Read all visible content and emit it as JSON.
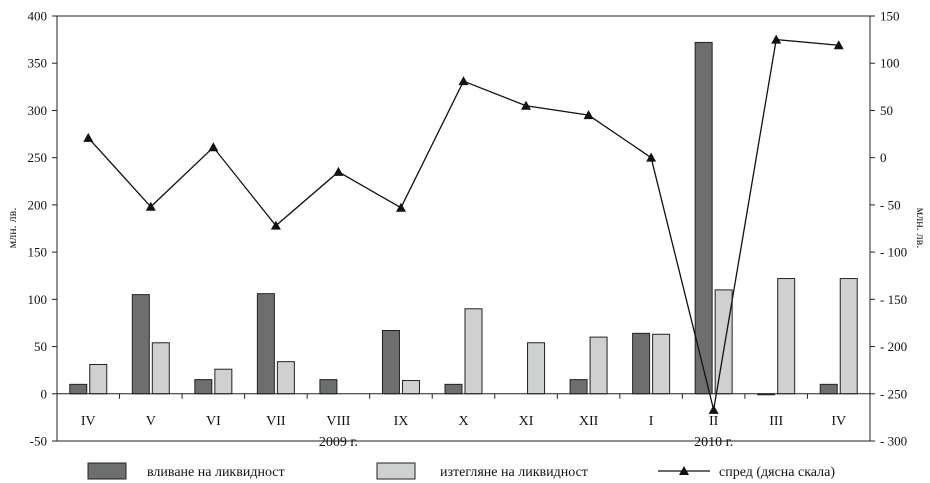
{
  "chart_data": {
    "type": "bar",
    "categories": [
      "IV",
      "V",
      "VI",
      "VII",
      "VIII",
      "IX",
      "X",
      "XI",
      "XII",
      "I",
      "II",
      "III",
      "IV"
    ],
    "year_labels": [
      {
        "label": "2009 г.",
        "under_category": "VIII"
      },
      {
        "label": "2010 г.",
        "under_category": "II"
      }
    ],
    "series": [
      {
        "name": "вливане на ливидност",
        "kind": "bar",
        "axis": "left",
        "color": "#6d6e6e",
        "values": [
          10,
          105,
          15,
          106,
          15,
          67,
          10,
          0,
          15,
          64,
          372,
          -1,
          10
        ]
      },
      {
        "name": "изтегляне на ливидност",
        "kind": "bar",
        "axis": "left",
        "color": "#cfd0d0",
        "values": [
          31,
          54,
          26,
          34,
          0,
          14,
          90,
          54,
          60,
          63,
          110,
          122,
          122
        ]
      },
      {
        "name": "спред (дясна скала)",
        "kind": "line",
        "axis": "right",
        "marker": "triangle",
        "color": "#111111",
        "values": [
          21,
          -52,
          11,
          -72,
          -15,
          -53,
          81,
          55,
          45,
          0,
          -267,
          125,
          119
        ]
      }
    ],
    "left_axis": {
      "ylim": [
        -50,
        400
      ],
      "ticks": [
        -50,
        0,
        50,
        100,
        150,
        200,
        250,
        300,
        350,
        400
      ],
      "label": "млн. лв."
    },
    "right_axis": {
      "ylim": [
        -300,
        150
      ],
      "ticks": [
        150,
        100,
        50,
        0,
        -50,
        -100,
        -150,
        -200,
        -250,
        -300
      ],
      "tick_labels": [
        "150",
        "100",
        "50",
        "0",
        "- 50",
        "- 100",
        "- 150",
        "- 200",
        "- 250",
        "- 300"
      ],
      "label": "млн. лв."
    },
    "grid": false,
    "legend_position": "bottom",
    "legend_entries": [
      "вливане на ликвидност",
      "изтегляне на ликвидност",
      "спред (дясна скала)"
    ]
  }
}
